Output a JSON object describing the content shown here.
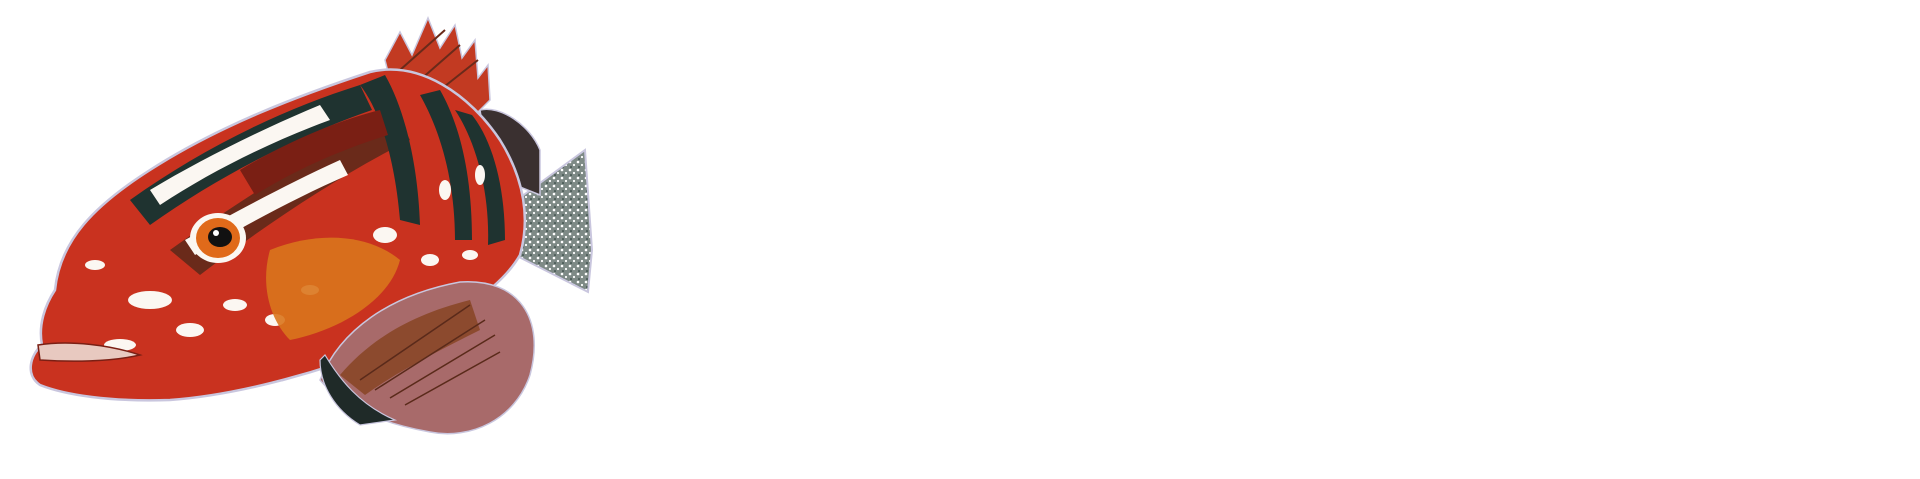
{
  "image": {
    "subject": "grouper-fish-illustration",
    "colors": {
      "background": "#ffffff",
      "red": "#d9321e",
      "dark_red": "#7a1f14",
      "orange": "#d9741c",
      "brown": "#6a2a1a",
      "dark_green": "#1f3330",
      "white_patch": "#fbf7f2",
      "fin_brown": "#8c4a2e",
      "fin_pink": "#a86a6a",
      "tail_gray": "#7e8a86",
      "outline": "#c9c6de"
    }
  }
}
